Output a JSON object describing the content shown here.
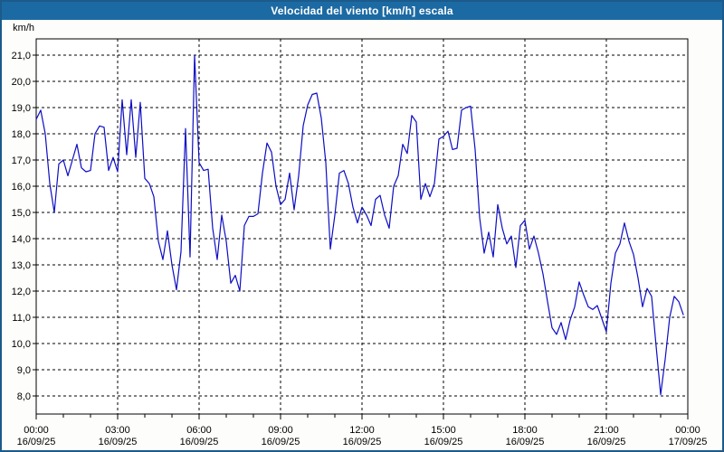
{
  "window": {
    "title": "Velocidad del viento [km/h] escala"
  },
  "colors": {
    "title_bar": "#1c6aa3",
    "window_border": "#1b5a8a",
    "window_background": "#fdfefb",
    "plot_background": "#ffffff",
    "grid_color": "#000000",
    "line_color": "#0d0dc4",
    "title_text": "#ffffff",
    "axis_text": "#000000"
  },
  "chart_data": {
    "type": "line",
    "title": "Velocidad del viento [km/h] escala",
    "unit_label": "km/h",
    "xlabel": "",
    "ylabel": "km/h",
    "ylim": [
      7.3,
      21.6
    ],
    "grid": "dashed",
    "legend_position": "none",
    "y_ticks": [
      {
        "value": 21,
        "label": "21,0"
      },
      {
        "value": 20,
        "label": "20,0"
      },
      {
        "value": 19,
        "label": "19,0"
      },
      {
        "value": 18,
        "label": "18,0"
      },
      {
        "value": 17,
        "label": "17,0"
      },
      {
        "value": 16,
        "label": "16,0"
      },
      {
        "value": 15,
        "label": "15,0"
      },
      {
        "value": 14,
        "label": "14,0"
      },
      {
        "value": 13,
        "label": "13,0"
      },
      {
        "value": 12,
        "label": "12,0"
      },
      {
        "value": 11,
        "label": "11,0"
      },
      {
        "value": 10,
        "label": "10,0"
      },
      {
        "value": 9,
        "label": "9,0"
      },
      {
        "value": 8,
        "label": "8,0"
      }
    ],
    "x_ticks": [
      {
        "minutes": 0,
        "time": "00:00",
        "date": "16/09/25"
      },
      {
        "minutes": 180,
        "time": "03:00",
        "date": "16/09/25"
      },
      {
        "minutes": 360,
        "time": "06:00",
        "date": "16/09/25"
      },
      {
        "minutes": 540,
        "time": "09:00",
        "date": "16/09/25"
      },
      {
        "minutes": 720,
        "time": "12:00",
        "date": "16/09/25"
      },
      {
        "minutes": 900,
        "time": "15:00",
        "date": "16/09/25"
      },
      {
        "minutes": 1080,
        "time": "18:00",
        "date": "16/09/25"
      },
      {
        "minutes": 1260,
        "time": "21:00",
        "date": "16/09/25"
      },
      {
        "minutes": 1440,
        "time": "00:00",
        "date": "17/09/25"
      }
    ],
    "minor_tick_every_minutes": 60,
    "series": [
      {
        "name": "Velocidad del viento [km/h]",
        "color": "#0d0dc4",
        "start_minutes": 0,
        "step_minutes": 10,
        "values": [
          18.55,
          18.9,
          18.0,
          16.1,
          15.0,
          16.85,
          17.0,
          16.4,
          17.0,
          17.6,
          16.7,
          16.55,
          16.6,
          18.0,
          18.3,
          18.25,
          16.6,
          17.1,
          16.55,
          19.3,
          17.2,
          19.3,
          17.1,
          19.2,
          16.3,
          16.1,
          15.6,
          13.9,
          13.2,
          14.3,
          13.0,
          12.05,
          13.5,
          18.2,
          13.3,
          21.0,
          16.9,
          16.6,
          16.65,
          14.4,
          13.2,
          14.9,
          13.9,
          12.3,
          12.6,
          12.0,
          14.5,
          14.85,
          14.85,
          14.95,
          16.5,
          17.65,
          17.3,
          16.0,
          15.3,
          15.5,
          16.5,
          15.1,
          16.4,
          18.3,
          19.1,
          19.5,
          19.55,
          18.6,
          16.9,
          13.6,
          14.9,
          16.5,
          16.6,
          16.1,
          15.2,
          14.6,
          15.2,
          14.9,
          14.5,
          15.5,
          15.65,
          14.9,
          14.4,
          16.0,
          16.4,
          17.6,
          17.25,
          18.7,
          18.45,
          15.5,
          16.1,
          15.6,
          16.1,
          17.8,
          17.9,
          18.1,
          17.4,
          17.45,
          18.9,
          19.0,
          19.05,
          17.4,
          14.8,
          13.45,
          14.25,
          13.3,
          15.3,
          14.4,
          13.8,
          14.1,
          12.9,
          14.5,
          14.7,
          13.6,
          14.1,
          13.45,
          12.65,
          11.6,
          10.6,
          10.35,
          10.8,
          10.15,
          10.9,
          11.4,
          12.35,
          11.85,
          11.4,
          11.3,
          11.45,
          10.95,
          10.45,
          12.3,
          13.45,
          13.8,
          14.6,
          13.9,
          13.4,
          12.5,
          11.4,
          12.1,
          11.8,
          9.9,
          8.05,
          9.4,
          11.0,
          11.8,
          11.6,
          11.1
        ]
      }
    ]
  }
}
